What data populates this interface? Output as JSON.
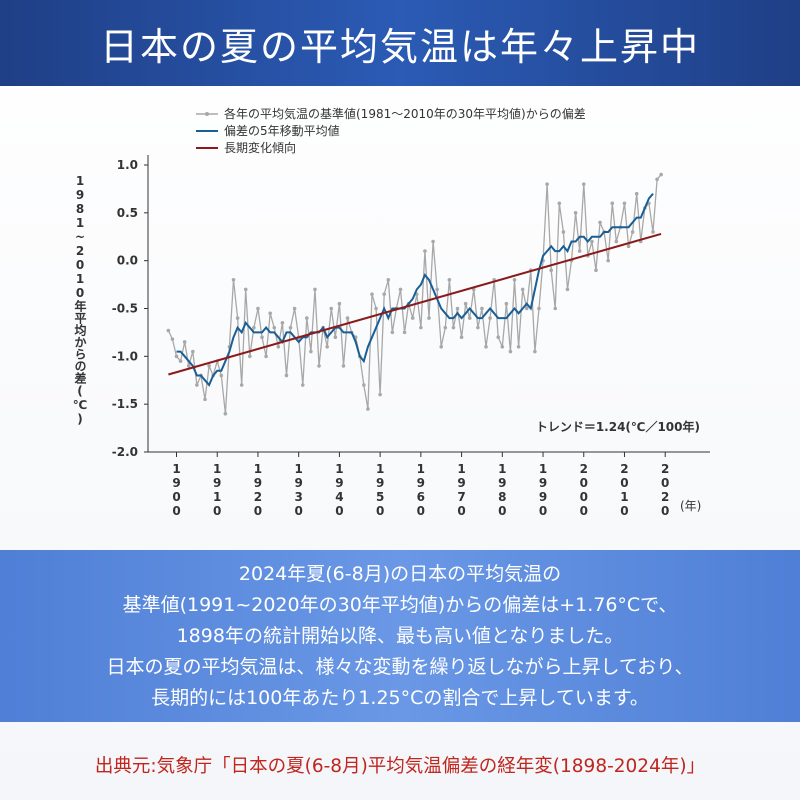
{
  "header": {
    "title": "日本の夏の平均気温は年々上昇中"
  },
  "chart_data": {
    "type": "line",
    "y_label": "1981~2010年平均からの差(℃)",
    "x_unit": "(年)",
    "annotation": "トレンド＝1.24(℃／100年)",
    "xlim": [
      1893,
      2031
    ],
    "xticks": [
      1900,
      1910,
      1920,
      1930,
      1940,
      1950,
      1960,
      1970,
      1980,
      1990,
      2000,
      2010,
      2020
    ],
    "ylim": [
      -2.0,
      1.0
    ],
    "yticks": [
      {
        "value": 1,
        "label": "1.0"
      },
      0.5,
      {
        "value": 0,
        "label": "0.0"
      },
      -0.5,
      {
        "value": -1,
        "label": "-1.0"
      },
      -1.5,
      {
        "value": -2,
        "label": "-2.0"
      }
    ],
    "x": [
      1898,
      1899,
      1900,
      1901,
      1902,
      1903,
      1904,
      1905,
      1906,
      1907,
      1908,
      1909,
      1910,
      1911,
      1912,
      1913,
      1914,
      1915,
      1916,
      1917,
      1918,
      1919,
      1920,
      1921,
      1922,
      1923,
      1924,
      1925,
      1926,
      1927,
      1928,
      1929,
      1930,
      1931,
      1932,
      1933,
      1934,
      1935,
      1936,
      1937,
      1938,
      1939,
      1940,
      1941,
      1942,
      1943,
      1944,
      1945,
      1946,
      1947,
      1948,
      1949,
      1950,
      1951,
      1952,
      1953,
      1954,
      1955,
      1956,
      1957,
      1958,
      1959,
      1960,
      1961,
      1962,
      1963,
      1964,
      1965,
      1966,
      1967,
      1968,
      1969,
      1970,
      1971,
      1972,
      1973,
      1974,
      1975,
      1976,
      1977,
      1978,
      1979,
      1980,
      1981,
      1982,
      1983,
      1984,
      1985,
      1986,
      1987,
      1988,
      1989,
      1990,
      1991,
      1992,
      1993,
      1994,
      1995,
      1996,
      1997,
      1998,
      1999,
      2000,
      2001,
      2002,
      2003,
      2004,
      2005,
      2006,
      2007,
      2008,
      2009,
      2010,
      2011,
      2012,
      2013,
      2014,
      2015,
      2016,
      2017,
      2018,
      2019
    ],
    "series": [
      {
        "name": "各年の平均気温の基準値(1981〜2010年の30年平均値)からの偏差",
        "color": "#a8a8a8",
        "values": [
          -0.73,
          -0.82,
          -1.0,
          -1.05,
          -0.85,
          -1.1,
          -0.95,
          -1.3,
          -1.2,
          -1.45,
          -1.1,
          -1.2,
          -1.05,
          -1.2,
          -1.6,
          -0.9,
          -0.2,
          -0.6,
          -1.3,
          -0.3,
          -1.0,
          -0.7,
          -0.5,
          -0.8,
          -1.0,
          -0.55,
          -0.7,
          -0.9,
          -0.65,
          -1.2,
          -0.7,
          -0.5,
          -0.8,
          -1.3,
          -0.6,
          -0.95,
          -0.3,
          -1.1,
          -0.7,
          -0.9,
          -0.5,
          -0.8,
          -0.45,
          -1.1,
          -0.6,
          -0.75,
          -0.8,
          -1.0,
          -1.3,
          -1.55,
          -0.35,
          -0.5,
          -1.4,
          -0.35,
          -0.2,
          -0.75,
          -0.5,
          -0.3,
          -0.75,
          -0.45,
          -0.6,
          -0.35,
          -0.7,
          0.1,
          -0.6,
          0.2,
          -0.3,
          -0.9,
          -0.7,
          -0.2,
          -0.7,
          -0.5,
          -0.8,
          -0.45,
          -0.6,
          -0.3,
          -0.7,
          -0.5,
          -0.9,
          -0.6,
          -0.2,
          -0.8,
          -0.9,
          -0.45,
          -0.95,
          -0.2,
          -0.9,
          -0.3,
          -0.5,
          -0.1,
          -0.95,
          -0.5,
          0.0,
          0.8,
          -0.1,
          -0.5,
          0.6,
          0.3,
          -0.3,
          0.0,
          0.5,
          0.1,
          0.8,
          0.05,
          0.2,
          -0.1,
          0.4,
          0.3,
          0.0,
          0.6,
          0.2,
          0.35,
          0.6,
          0.15,
          0.3,
          0.7,
          0.2,
          0.55,
          0.6,
          0.3,
          0.85,
          0.9
        ]
      },
      {
        "name": "偏差の5年移動平均値",
        "color": "#1a5e96",
        "values": [
          null,
          null,
          -0.95,
          -0.95,
          -1.0,
          -1.05,
          -1.1,
          -1.2,
          -1.2,
          -1.25,
          -1.3,
          -1.2,
          -1.15,
          -1.15,
          -1.05,
          -0.95,
          -0.8,
          -0.7,
          -0.75,
          -0.65,
          -0.7,
          -0.75,
          -0.75,
          -0.75,
          -0.7,
          -0.75,
          -0.75,
          -0.8,
          -0.85,
          -0.75,
          -0.75,
          -0.8,
          -0.85,
          -0.8,
          -0.8,
          -0.75,
          -0.75,
          -0.75,
          -0.7,
          -0.8,
          -0.75,
          -0.7,
          -0.7,
          -0.75,
          -0.75,
          -0.75,
          -0.85,
          -1.0,
          -1.05,
          -0.9,
          -0.8,
          -0.7,
          -0.6,
          -0.5,
          -0.6,
          -0.5,
          -0.5,
          -0.5,
          -0.5,
          -0.45,
          -0.4,
          -0.3,
          -0.25,
          -0.15,
          -0.2,
          -0.3,
          -0.4,
          -0.5,
          -0.55,
          -0.6,
          -0.6,
          -0.55,
          -0.6,
          -0.55,
          -0.5,
          -0.55,
          -0.6,
          -0.6,
          -0.55,
          -0.5,
          -0.55,
          -0.6,
          -0.6,
          -0.6,
          -0.55,
          -0.5,
          -0.55,
          -0.5,
          -0.45,
          -0.5,
          -0.3,
          -0.1,
          0.05,
          0.1,
          0.15,
          0.1,
          0.1,
          0.15,
          0.1,
          0.2,
          0.2,
          0.25,
          0.25,
          0.2,
          0.25,
          0.25,
          0.25,
          0.3,
          0.3,
          0.35,
          0.35,
          0.35,
          0.35,
          0.35,
          0.4,
          0.45,
          0.45,
          0.55,
          0.65,
          0.7,
          null,
          null
        ]
      },
      {
        "name": "長期変化傾向",
        "color": "#8b1a1a",
        "x": [
          1898,
          2019
        ],
        "values": [
          -1.19,
          0.28
        ]
      }
    ]
  },
  "summary": [
    "2024年夏(6-8月)の日本の平均気温の",
    "基準値(1991~2020年の30年平均値)からの偏差は+1.76°Cで、",
    "1898年の統計開始以降、最も高い値となりました。",
    "日本の夏の平均気温は、様々な変動を繰り返しながら上昇しており、",
    "長期的には100年あたり1.25°Cの割合で上昇しています。"
  ],
  "source": "出典元:気象庁「日本の夏(6-8月)平均気温偏差の経年変(1898-2024年)」"
}
